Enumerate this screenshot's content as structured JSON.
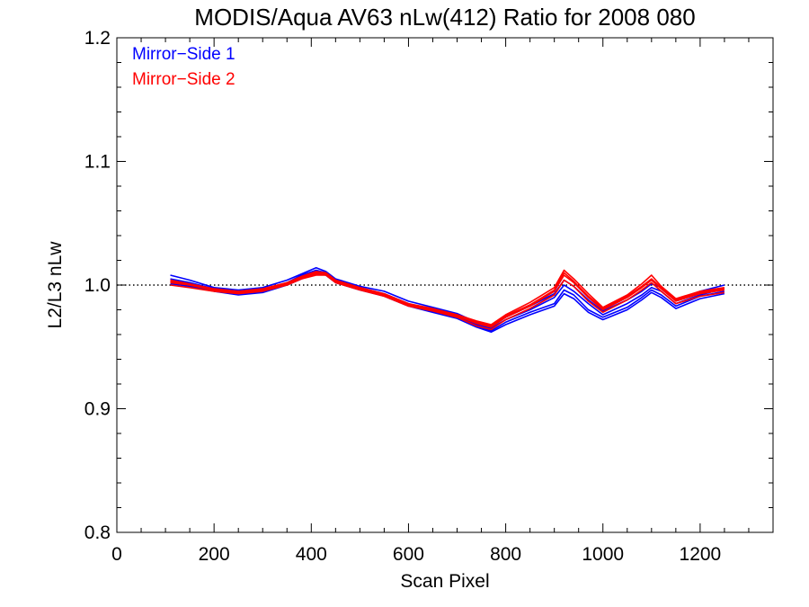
{
  "chart_data": {
    "type": "line",
    "title": "MODIS/Aqua AV63 nLw(412) Ratio for 2008 080",
    "xlabel": "Scan Pixel",
    "ylabel": "L2/L3 nLw",
    "xlim": [
      0,
      1350
    ],
    "ylim": [
      0.8,
      1.2
    ],
    "x_ticks": [
      0,
      200,
      400,
      600,
      800,
      1000,
      1200
    ],
    "y_ticks": [
      0.8,
      0.9,
      1.0,
      1.1,
      1.2
    ],
    "x_tick_labels": [
      "0",
      "200",
      "400",
      "600",
      "800",
      "1000",
      "1200"
    ],
    "y_tick_labels": [
      "0.8",
      "0.9",
      "1.0",
      "1.1",
      "1.2"
    ],
    "reference_line": {
      "y": 1.0,
      "style": "dotted"
    },
    "grid": false,
    "legend_position": "top-left",
    "legend": [
      {
        "label": "Mirror−Side 1",
        "color": "#0000ff"
      },
      {
        "label": "Mirror−Side 2",
        "color": "#ff0000"
      }
    ],
    "x": [
      110,
      150,
      200,
      250,
      300,
      350,
      380,
      410,
      430,
      450,
      500,
      550,
      600,
      650,
      700,
      740,
      770,
      800,
      850,
      900,
      920,
      940,
      970,
      1000,
      1050,
      1080,
      1100,
      1120,
      1150,
      1200,
      1250
    ],
    "series": [
      {
        "color": "#0000ff",
        "lines": [
          [
            1.005,
            1.002,
            0.997,
            0.994,
            0.996,
            1.002,
            1.008,
            1.012,
            1.01,
            1.004,
            0.998,
            0.993,
            0.985,
            0.98,
            0.975,
            0.968,
            0.965,
            0.972,
            0.98,
            0.99,
            1.0,
            0.995,
            0.985,
            0.976,
            0.985,
            0.992,
            0.998,
            0.995,
            0.985,
            0.992,
            0.997
          ],
          [
            1.003,
            1.0,
            0.996,
            0.993,
            0.995,
            1.001,
            1.006,
            1.01,
            1.009,
            1.003,
            0.997,
            0.992,
            0.984,
            0.979,
            0.974,
            0.967,
            0.963,
            0.97,
            0.978,
            0.985,
            0.996,
            0.992,
            0.98,
            0.974,
            0.982,
            0.99,
            0.996,
            0.992,
            0.983,
            0.991,
            0.995
          ],
          [
            1.008,
            1.004,
            0.998,
            0.996,
            0.998,
            1.004,
            1.009,
            1.014,
            1.011,
            1.005,
            0.999,
            0.995,
            0.987,
            0.982,
            0.977,
            0.97,
            0.967,
            0.974,
            0.983,
            0.993,
            1.004,
            0.999,
            0.988,
            0.979,
            0.988,
            0.995,
            1.001,
            0.998,
            0.988,
            0.995,
            1.0
          ],
          [
            1.001,
            0.999,
            0.995,
            0.992,
            0.994,
            1.0,
            1.005,
            1.009,
            1.008,
            1.002,
            0.996,
            0.991,
            0.983,
            0.978,
            0.973,
            0.966,
            0.962,
            0.968,
            0.976,
            0.983,
            0.993,
            0.989,
            0.978,
            0.972,
            0.98,
            0.988,
            0.994,
            0.99,
            0.981,
            0.989,
            0.993
          ]
        ]
      },
      {
        "color": "#ff0000",
        "lines": [
          [
            1.002,
            1.0,
            0.996,
            0.994,
            0.996,
            1.001,
            1.006,
            1.01,
            1.009,
            1.003,
            0.997,
            0.992,
            0.984,
            0.98,
            0.975,
            0.969,
            0.966,
            0.974,
            0.983,
            0.995,
            1.008,
            1.002,
            0.99,
            0.98,
            0.99,
            0.998,
            1.004,
            0.997,
            0.987,
            0.993,
            0.996
          ],
          [
            1.004,
            1.001,
            0.997,
            0.995,
            0.997,
            1.002,
            1.007,
            1.011,
            1.01,
            1.004,
            0.998,
            0.993,
            0.985,
            0.981,
            0.976,
            0.971,
            0.968,
            0.976,
            0.986,
            0.998,
            1.012,
            1.005,
            0.993,
            0.982,
            0.992,
            1.001,
            1.008,
            0.999,
            0.989,
            0.995,
            0.998
          ],
          [
            1.0,
            0.998,
            0.995,
            0.993,
            0.995,
            1.0,
            1.005,
            1.008,
            1.008,
            1.002,
            0.996,
            0.991,
            0.983,
            0.979,
            0.974,
            0.967,
            0.964,
            0.972,
            0.981,
            0.992,
            1.004,
            0.999,
            0.987,
            0.978,
            0.988,
            0.996,
            1.002,
            0.995,
            0.985,
            0.991,
            0.994
          ],
          [
            1.003,
            1.0,
            0.996,
            0.994,
            0.996,
            1.001,
            1.006,
            1.009,
            1.009,
            1.003,
            0.997,
            0.992,
            0.984,
            0.98,
            0.975,
            0.97,
            0.967,
            0.975,
            0.984,
            0.996,
            1.01,
            1.003,
            0.991,
            0.981,
            0.991,
            0.999,
            1.005,
            0.998,
            0.988,
            0.994,
            0.997
          ]
        ]
      }
    ]
  }
}
